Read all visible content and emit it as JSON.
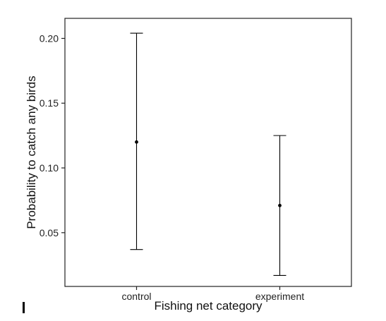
{
  "chart_data": {
    "type": "errorbar",
    "categories": [
      "control",
      "experiment"
    ],
    "points": [
      {
        "category": "control",
        "estimate": 0.12,
        "lower": 0.037,
        "upper": 0.204
      },
      {
        "category": "experiment",
        "estimate": 0.071,
        "lower": 0.017,
        "upper": 0.125
      }
    ],
    "xlabel": "Fishing net category",
    "ylabel": "Probability to catch any birds",
    "yticks": [
      0.05,
      0.1,
      0.15,
      0.2
    ],
    "ytick_labels": [
      "0.05",
      "0.10",
      "0.15",
      "0.20"
    ],
    "ylim": [
      0.0085,
      0.2155
    ],
    "grid": false,
    "legend": "none",
    "colors": {
      "mark": "#000000",
      "frame": "#222222"
    }
  }
}
